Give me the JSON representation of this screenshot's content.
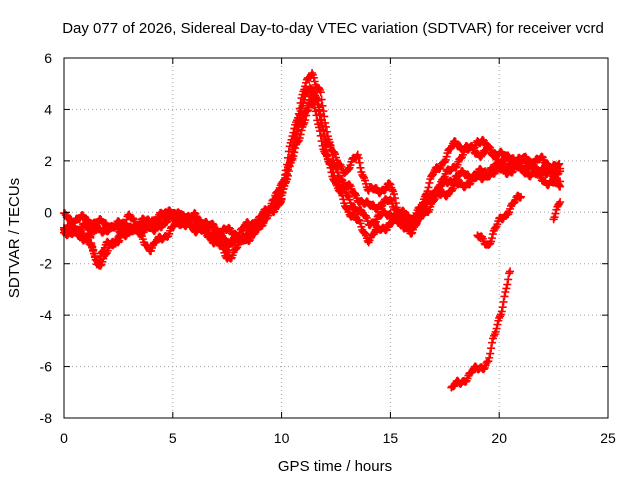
{
  "chart_data": {
    "type": "scatter",
    "title": "Day 077 of 2026, Sidereal Day-to-day VTEC variation (SDTVAR) for receiver vcrd",
    "xlabel": "GPS time / hours",
    "ylabel": "SDTVAR / TECUs",
    "xlim": [
      0,
      25
    ],
    "ylim": [
      -8,
      6
    ],
    "xticks": [
      0,
      5,
      10,
      15,
      20,
      25
    ],
    "yticks": [
      -8,
      -6,
      -4,
      -2,
      0,
      2,
      4,
      6
    ],
    "grid": true,
    "marker": "+",
    "color": "#ff0000",
    "series": [
      {
        "name": "trace-1",
        "points": [
          [
            0,
            -0.8
          ],
          [
            1,
            -0.5
          ],
          [
            1.5,
            -1.9
          ],
          [
            2,
            -1.3
          ],
          [
            3,
            -0.6
          ],
          [
            4,
            -0.3
          ],
          [
            5,
            0
          ],
          [
            6,
            -0.5
          ],
          [
            7,
            -0.9
          ],
          [
            8,
            -1.2
          ],
          [
            9,
            -0.4
          ],
          [
            10,
            0.8
          ],
          [
            10.5,
            2.0
          ],
          [
            11,
            3.5
          ],
          [
            11.3,
            4.3
          ],
          [
            11.6,
            3.8
          ],
          [
            12,
            2.3
          ],
          [
            12.5,
            1.2
          ],
          [
            13,
            1.0
          ],
          [
            14,
            0.2
          ],
          [
            15,
            0.4
          ],
          [
            16,
            -0.4
          ],
          [
            17,
            0.8
          ],
          [
            18,
            1.4
          ],
          [
            19,
            1.5
          ],
          [
            20,
            1.6
          ],
          [
            21,
            1.7
          ],
          [
            22,
            1.3
          ],
          [
            22.8,
            1.0
          ]
        ]
      },
      {
        "name": "trace-2",
        "points": [
          [
            0,
            -0.2
          ],
          [
            1,
            -0.3
          ],
          [
            2,
            -0.5
          ],
          [
            3,
            -0.5
          ],
          [
            4,
            -1.4
          ],
          [
            5,
            -0.6
          ],
          [
            6,
            -0.2
          ],
          [
            7,
            -0.7
          ],
          [
            7.5,
            -1.5
          ],
          [
            8,
            -1.0
          ],
          [
            9,
            -0.5
          ],
          [
            10,
            0.6
          ],
          [
            10.5,
            3.0
          ],
          [
            11,
            4.7
          ],
          [
            11.4,
            5.4
          ],
          [
            11.8,
            4.7
          ],
          [
            12,
            3.3
          ],
          [
            12.5,
            1.8
          ],
          [
            13,
            0.6
          ],
          [
            14,
            -0.4
          ],
          [
            15,
            0
          ],
          [
            16,
            -0.7
          ],
          [
            17,
            0.5
          ],
          [
            18,
            1.0
          ],
          [
            19,
            1.3
          ],
          [
            20,
            1.8
          ],
          [
            21,
            1.8
          ],
          [
            22,
            1.6
          ],
          [
            22.8,
            1.2
          ]
        ]
      },
      {
        "name": "trace-3",
        "points": [
          [
            0,
            -0.7
          ],
          [
            1,
            -0.9
          ],
          [
            2,
            -0.6
          ],
          [
            3,
            -0.8
          ],
          [
            4,
            -0.5
          ],
          [
            5,
            -0.3
          ],
          [
            6,
            -0.3
          ],
          [
            7,
            -0.7
          ],
          [
            8,
            -0.8
          ],
          [
            9,
            -0.2
          ],
          [
            10,
            0.4
          ],
          [
            10.5,
            2.5
          ],
          [
            11,
            4.2
          ],
          [
            11.3,
            5.0
          ],
          [
            11.7,
            4.2
          ],
          [
            12,
            2.6
          ],
          [
            12.5,
            1.0
          ],
          [
            13,
            0.2
          ],
          [
            14,
            -1.0
          ],
          [
            15,
            -0.4
          ],
          [
            16,
            -0.5
          ],
          [
            17,
            1.5
          ],
          [
            18,
            2.7
          ],
          [
            19,
            2.3
          ],
          [
            19.5,
            2.4
          ],
          [
            20,
            2.0
          ],
          [
            21,
            2.1
          ],
          [
            22,
            1.6
          ],
          [
            22.8,
            1.6
          ]
        ]
      },
      {
        "name": "trace-4",
        "points": [
          [
            0,
            -0.5
          ],
          [
            1,
            -1.0
          ],
          [
            1.6,
            -2.0
          ],
          [
            2.5,
            -1.0
          ],
          [
            3,
            -0.2
          ],
          [
            4,
            -0.7
          ],
          [
            5,
            0.1
          ],
          [
            6,
            -0.6
          ],
          [
            7,
            -1.1
          ],
          [
            7.5,
            -1.8
          ],
          [
            8,
            -1.3
          ],
          [
            9,
            -0.6
          ],
          [
            10,
            1.0
          ],
          [
            10.5,
            2.4
          ],
          [
            11,
            3.8
          ],
          [
            11.5,
            4.6
          ],
          [
            12,
            3.0
          ],
          [
            12.5,
            2.0
          ],
          [
            13,
            1.6
          ],
          [
            13.5,
            2.2
          ],
          [
            14,
            0.8
          ],
          [
            15,
            1.0
          ],
          [
            15.5,
            -0.2
          ],
          [
            16,
            -0.6
          ],
          [
            17,
            0.8
          ],
          [
            18,
            1.9
          ],
          [
            19,
            2.8
          ],
          [
            19.5,
            2.5
          ],
          [
            20.5,
            2.0
          ],
          [
            21.5,
            2.0
          ],
          [
            22,
            2.0
          ],
          [
            22.8,
            1.7
          ]
        ]
      },
      {
        "name": "trace-5",
        "points": [
          [
            19,
            -1.0
          ],
          [
            19.5,
            -1.2
          ],
          [
            20,
            -0.4
          ],
          [
            20.5,
            0.2
          ],
          [
            21,
            0.6
          ]
        ]
      },
      {
        "name": "trace-6",
        "points": [
          [
            17.8,
            -6.9
          ],
          [
            18.5,
            -6.4
          ],
          [
            19,
            -6.1
          ],
          [
            19.5,
            -5.8
          ],
          [
            19.8,
            -4.8
          ],
          [
            20.2,
            -3.4
          ],
          [
            20.5,
            -2.3
          ]
        ]
      },
      {
        "name": "trace-7",
        "points": [
          [
            22.5,
            -0.1
          ],
          [
            22.8,
            0.4
          ]
        ]
      }
    ]
  }
}
